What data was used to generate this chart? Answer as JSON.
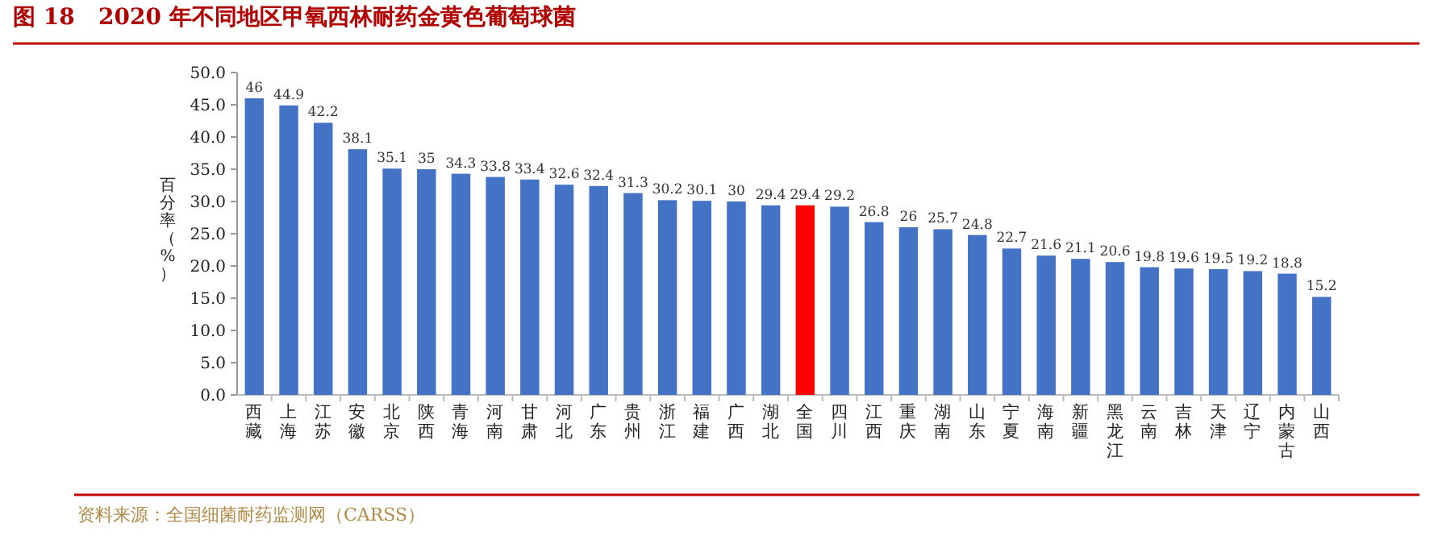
{
  "chart_data": {
    "type": "bar",
    "title": "图 18   2020 年不同地区甲氧西林耐药金黄色葡萄球菌",
    "ylabel": "百分率（%）",
    "categories": [
      "西藏",
      "上海",
      "江苏",
      "安徽",
      "北京",
      "陕西",
      "青海",
      "河南",
      "甘肃",
      "河北",
      "广东",
      "贵州",
      "浙江",
      "福建",
      "广西",
      "湖北",
      "全国",
      "四川",
      "江西",
      "重庆",
      "湖南",
      "山东",
      "宁夏",
      "海南",
      "新疆",
      "黑龙江",
      "云南",
      "吉林",
      "天津",
      "辽宁",
      "内蒙古",
      "山西"
    ],
    "values": [
      46,
      44.9,
      42.2,
      38.1,
      35.1,
      35,
      34.3,
      33.8,
      33.4,
      32.6,
      32.4,
      31.3,
      30.2,
      30.1,
      30,
      29.4,
      29.4,
      29.2,
      26.8,
      26,
      25.7,
      24.8,
      22.7,
      21.6,
      21.1,
      20.6,
      19.8,
      19.6,
      19.5,
      19.2,
      18.8,
      15.2
    ],
    "colors": [
      "#4472c4",
      "#4472c4",
      "#4472c4",
      "#4472c4",
      "#4472c4",
      "#4472c4",
      "#4472c4",
      "#4472c4",
      "#4472c4",
      "#4472c4",
      "#4472c4",
      "#4472c4",
      "#4472c4",
      "#4472c4",
      "#4472c4",
      "#4472c4",
      "#ff0000",
      "#4472c4",
      "#4472c4",
      "#4472c4",
      "#4472c4",
      "#4472c4",
      "#4472c4",
      "#4472c4",
      "#4472c4",
      "#4472c4",
      "#4472c4",
      "#4472c4",
      "#4472c4",
      "#4472c4",
      "#4472c4",
      "#4472c4"
    ],
    "ylim": [
      0,
      50
    ],
    "yticks": [
      {
        "value": 0,
        "label": "0.0"
      },
      {
        "value": 5,
        "label": "5.0"
      },
      {
        "value": 10,
        "label": "10.0"
      },
      {
        "value": 15,
        "label": "15.0"
      },
      {
        "value": 20,
        "label": "20.0"
      },
      {
        "value": 25,
        "label": "25.0"
      },
      {
        "value": 30,
        "label": "30.0"
      },
      {
        "value": 35,
        "label": "35.0"
      },
      {
        "value": 40,
        "label": "40.0"
      },
      {
        "value": 45,
        "label": "45.0"
      },
      {
        "value": 50,
        "label": "50.0"
      }
    ],
    "data_labels": true,
    "grid": false,
    "annotations": [
      "资料来源：全国细菌耐药监测网（CARSS）"
    ]
  }
}
